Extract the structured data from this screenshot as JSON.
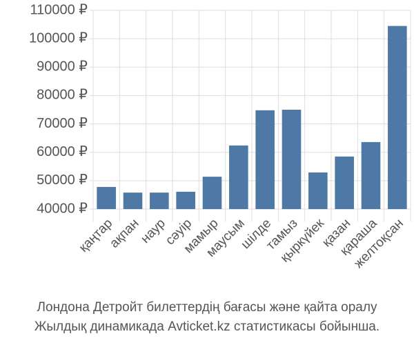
{
  "chart_data": {
    "type": "bar",
    "title": "Лондона Детройт билеттердің бағасы және қайта оралу",
    "subtitle": "Жылдық динамикада Avticket.kz статистикасы бойынша.",
    "categories": [
      "қаңтар",
      "ақпан",
      "наур",
      "сәуір",
      "мамыр",
      "маусым",
      "шілде",
      "тамыз",
      "қыркүйек",
      "қазан",
      "қараша",
      "желтоқсан"
    ],
    "values": [
      47800,
      45800,
      45800,
      46100,
      51400,
      62400,
      74800,
      75000,
      52900,
      58500,
      63600,
      104500
    ],
    "color": "#4e79a7",
    "ylim": [
      40000,
      110000
    ],
    "yticks": [
      {
        "value": 40000,
        "label": "40000 ₽"
      },
      {
        "value": 50000,
        "label": "50000 ₽"
      },
      {
        "value": 60000,
        "label": "60000 ₽"
      },
      {
        "value": 70000,
        "label": "70000 ₽"
      },
      {
        "value": 80000,
        "label": "80000 ₽"
      },
      {
        "value": 90000,
        "label": "90000 ₽"
      },
      {
        "value": 100000,
        "label": "100000 ₽"
      },
      {
        "value": 110000,
        "label": "110000 ₽"
      }
    ],
    "grid": true
  }
}
